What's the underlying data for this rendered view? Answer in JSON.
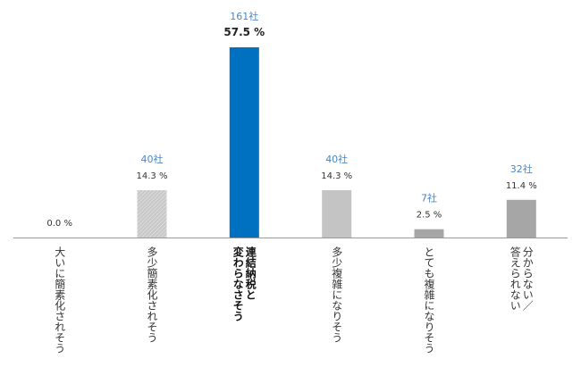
{
  "chart_data": {
    "type": "bar",
    "categories": [
      {
        "lines": [
          "大いに簡素化されそう"
        ]
      },
      {
        "lines": [
          "多少簡素化されそう"
        ]
      },
      {
        "lines": [
          "連結納税と",
          "変わらなさそう"
        ],
        "highlight": true
      },
      {
        "lines": [
          "多少複雑になりそう"
        ]
      },
      {
        "lines": [
          "とても複雑になりそう"
        ]
      },
      {
        "lines": [
          "分からない／",
          "答えられない"
        ]
      }
    ],
    "values": [
      0.0,
      14.3,
      57.5,
      14.3,
      2.5,
      11.4
    ],
    "value_labels": [
      "0.0 %",
      "14.3 %",
      "57.5 %",
      "14.3 %",
      "2.5 %",
      "11.4 %"
    ],
    "counts": [
      "",
      "40社",
      "161社",
      "40社",
      "7社",
      "32社"
    ],
    "ylim": [
      0,
      57.5
    ],
    "grid": false,
    "colors": {
      "default": "#c4c4c4",
      "hatched": "#bdbdbd",
      "highlight": "#0070c0",
      "unknown": "#a6a6a6",
      "count_text": "#4a86c8",
      "axis": "#999999"
    },
    "bar_styles": [
      "hatched",
      "hatched",
      "highlight",
      "default",
      "unknown",
      "unknown"
    ]
  }
}
